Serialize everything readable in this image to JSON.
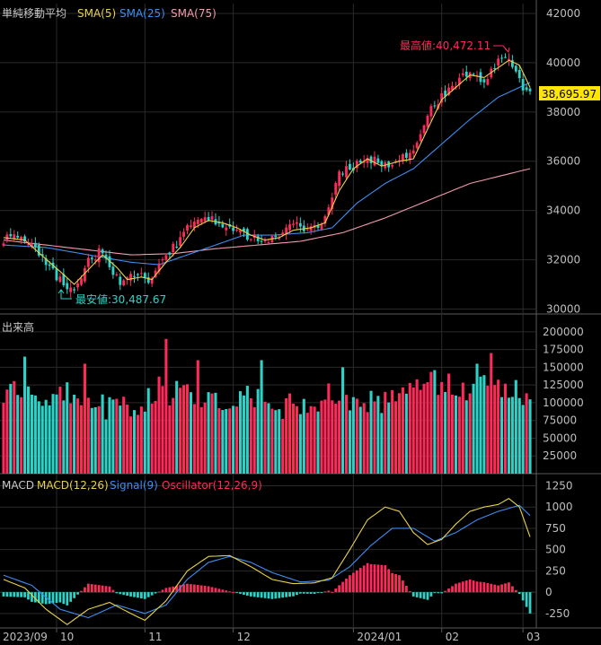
{
  "colors": {
    "bg": "#000000",
    "grid": "#2a2a2a",
    "frame": "#5a5a5a",
    "up": "#ff2a5a",
    "down": "#2ed3c8",
    "sma5": "#e8d24a",
    "sma25": "#3d8df0",
    "sma75": "#f39bb0",
    "macd": "#e8d24a",
    "signal": "#3d8df0",
    "osc_up": "#ff2a5a",
    "osc_down": "#2ed3c8",
    "price_box": "#ffe600"
  },
  "price_panel": {
    "title": "単純移動平均",
    "legend": [
      {
        "label": "SMA(5)",
        "color": "#e8d24a"
      },
      {
        "label": "SMA(25)",
        "color": "#3d8df0"
      },
      {
        "label": "SMA(75)",
        "color": "#f39bb0"
      }
    ],
    "y_ticks": [
      "42000",
      "40000",
      "38000",
      "36000",
      "34000",
      "32000",
      "30000"
    ],
    "high_label": "最高値:40,472.11",
    "low_label": "最安値:30,487.67",
    "current_price": "38,695.97"
  },
  "volume_panel": {
    "title": "出来高",
    "y_ticks": [
      "200000",
      "175000",
      "150000",
      "125000",
      "100000",
      "75000",
      "50000",
      "25000"
    ]
  },
  "macd_panel": {
    "title": "MACD",
    "legend": [
      {
        "label": "MACD(12,26)",
        "color": "#e8d24a"
      },
      {
        "label": "Signal(9)",
        "color": "#3d8df0"
      },
      {
        "label": "Oscillator(12,26,9)",
        "color": "#ff2a5a"
      }
    ],
    "y_ticks": [
      "1250",
      "1000",
      "750",
      "500",
      "250",
      "0",
      "-250"
    ]
  },
  "x_axis": {
    "labels": [
      "2023/09",
      "10",
      "11",
      "12",
      "2024/01",
      "02",
      "03"
    ]
  },
  "chart_data": {
    "type": "candlestick",
    "anchors": {
      "close": [
        [
          0,
          32800
        ],
        [
          5,
          33100
        ],
        [
          12,
          31800
        ],
        [
          16,
          31200
        ],
        [
          19,
          30700
        ],
        [
          24,
          31900
        ],
        [
          28,
          32400
        ],
        [
          31,
          31400
        ],
        [
          34,
          31000
        ],
        [
          38,
          31500
        ],
        [
          41,
          30900
        ],
        [
          45,
          32100
        ],
        [
          49,
          32600
        ],
        [
          53,
          33500
        ],
        [
          57,
          33800
        ],
        [
          62,
          33500
        ],
        [
          66,
          33200
        ],
        [
          70,
          32900
        ],
        [
          74,
          32700
        ],
        [
          78,
          33000
        ],
        [
          82,
          33400
        ],
        [
          87,
          33300
        ],
        [
          91,
          33600
        ],
        [
          95,
          35500
        ],
        [
          99,
          35800
        ],
        [
          103,
          36200
        ],
        [
          107,
          35800
        ],
        [
          112,
          36100
        ],
        [
          116,
          36300
        ],
        [
          120,
          38000
        ],
        [
          124,
          38600
        ],
        [
          128,
          39200
        ],
        [
          132,
          39700
        ],
        [
          136,
          39200
        ],
        [
          140,
          40000
        ],
        [
          143,
          40200
        ],
        [
          146,
          39200
        ],
        [
          149,
          38696
        ]
      ],
      "sma5": [
        [
          0,
          32900
        ],
        [
          6,
          32800
        ],
        [
          13,
          31900
        ],
        [
          17,
          31400
        ],
        [
          20,
          31000
        ],
        [
          24,
          31600
        ],
        [
          28,
          32200
        ],
        [
          32,
          31700
        ],
        [
          35,
          31200
        ],
        [
          39,
          31300
        ],
        [
          42,
          31200
        ],
        [
          46,
          31900
        ],
        [
          50,
          32500
        ],
        [
          54,
          33300
        ],
        [
          58,
          33600
        ],
        [
          62,
          33500
        ],
        [
          66,
          33300
        ],
        [
          70,
          33000
        ],
        [
          74,
          32800
        ],
        [
          78,
          32900
        ],
        [
          82,
          33200
        ],
        [
          87,
          33300
        ],
        [
          91,
          33500
        ],
        [
          95,
          34800
        ],
        [
          99,
          35700
        ],
        [
          103,
          36100
        ],
        [
          107,
          35800
        ],
        [
          112,
          36000
        ],
        [
          116,
          36100
        ],
        [
          120,
          37300
        ],
        [
          124,
          38500
        ],
        [
          128,
          39000
        ],
        [
          132,
          39500
        ],
        [
          136,
          39400
        ],
        [
          140,
          39800
        ],
        [
          143,
          40100
        ],
        [
          146,
          39900
        ],
        [
          149,
          39000
        ]
      ],
      "sma25": [
        [
          0,
          32600
        ],
        [
          12,
          32500
        ],
        [
          24,
          32200
        ],
        [
          36,
          31900
        ],
        [
          44,
          31800
        ],
        [
          52,
          32200
        ],
        [
          60,
          32600
        ],
        [
          68,
          33000
        ],
        [
          76,
          33000
        ],
        [
          86,
          33100
        ],
        [
          93,
          33300
        ],
        [
          100,
          34300
        ],
        [
          108,
          35100
        ],
        [
          116,
          35700
        ],
        [
          124,
          36700
        ],
        [
          132,
          37700
        ],
        [
          140,
          38600
        ],
        [
          149,
          39200
        ]
      ],
      "sma75": [
        [
          0,
          32800
        ],
        [
          12,
          32600
        ],
        [
          24,
          32400
        ],
        [
          36,
          32200
        ],
        [
          48,
          32250
        ],
        [
          60,
          32450
        ],
        [
          72,
          32600
        ],
        [
          84,
          32750
        ],
        [
          96,
          33100
        ],
        [
          108,
          33700
        ],
        [
          120,
          34400
        ],
        [
          132,
          35100
        ],
        [
          149,
          35700
        ]
      ],
      "volume": [
        [
          0,
          110000
        ],
        [
          3,
          130000
        ],
        [
          8,
          120000
        ],
        [
          14,
          105000
        ],
        [
          20,
          115000
        ],
        [
          26,
          95000
        ],
        [
          32,
          90000
        ],
        [
          38,
          100000
        ],
        [
          44,
          120000
        ],
        [
          50,
          110000
        ],
        [
          56,
          100000
        ],
        [
          62,
          95000
        ],
        [
          68,
          105000
        ],
        [
          74,
          100000
        ],
        [
          80,
          95000
        ],
        [
          86,
          90000
        ],
        [
          92,
          110000
        ],
        [
          98,
          105000
        ],
        [
          104,
          100000
        ],
        [
          110,
          110000
        ],
        [
          116,
          125000
        ],
        [
          122,
          130000
        ],
        [
          128,
          120000
        ],
        [
          134,
          125000
        ],
        [
          140,
          125000
        ],
        [
          146,
          115000
        ],
        [
          149,
          110000
        ]
      ],
      "macd": [
        [
          0,
          150
        ],
        [
          6,
          50
        ],
        [
          12,
          -200
        ],
        [
          18,
          -380
        ],
        [
          24,
          -200
        ],
        [
          30,
          -120
        ],
        [
          36,
          -250
        ],
        [
          40,
          -330
        ],
        [
          46,
          -100
        ],
        [
          52,
          250
        ],
        [
          58,
          420
        ],
        [
          64,
          430
        ],
        [
          70,
          300
        ],
        [
          76,
          150
        ],
        [
          82,
          100
        ],
        [
          88,
          110
        ],
        [
          93,
          170
        ],
        [
          98,
          500
        ],
        [
          103,
          850
        ],
        [
          108,
          1000
        ],
        [
          112,
          950
        ],
        [
          116,
          700
        ],
        [
          120,
          560
        ],
        [
          124,
          620
        ],
        [
          128,
          800
        ],
        [
          132,
          950
        ],
        [
          136,
          1000
        ],
        [
          140,
          1030
        ],
        [
          143,
          1100
        ],
        [
          146,
          1000
        ],
        [
          149,
          650
        ]
      ],
      "signal": [
        [
          0,
          200
        ],
        [
          8,
          80
        ],
        [
          16,
          -200
        ],
        [
          24,
          -300
        ],
        [
          32,
          -150
        ],
        [
          40,
          -250
        ],
        [
          46,
          -150
        ],
        [
          52,
          150
        ],
        [
          58,
          350
        ],
        [
          64,
          420
        ],
        [
          70,
          350
        ],
        [
          76,
          230
        ],
        [
          84,
          120
        ],
        [
          92,
          140
        ],
        [
          98,
          300
        ],
        [
          104,
          550
        ],
        [
          110,
          750
        ],
        [
          116,
          750
        ],
        [
          122,
          600
        ],
        [
          128,
          700
        ],
        [
          134,
          850
        ],
        [
          140,
          950
        ],
        [
          146,
          1020
        ],
        [
          149,
          900
        ]
      ]
    },
    "bar_count": 150,
    "spikes": {
      "6": 165000,
      "23": 155000,
      "46": 190000,
      "55": 160000,
      "73": 160000,
      "96": 150000,
      "134": 155000,
      "138": 170000
    },
    "y_ranges": {
      "price": [
        29800,
        42400
      ],
      "volume": [
        0,
        215000
      ],
      "macd": [
        -420,
        1350
      ]
    }
  }
}
